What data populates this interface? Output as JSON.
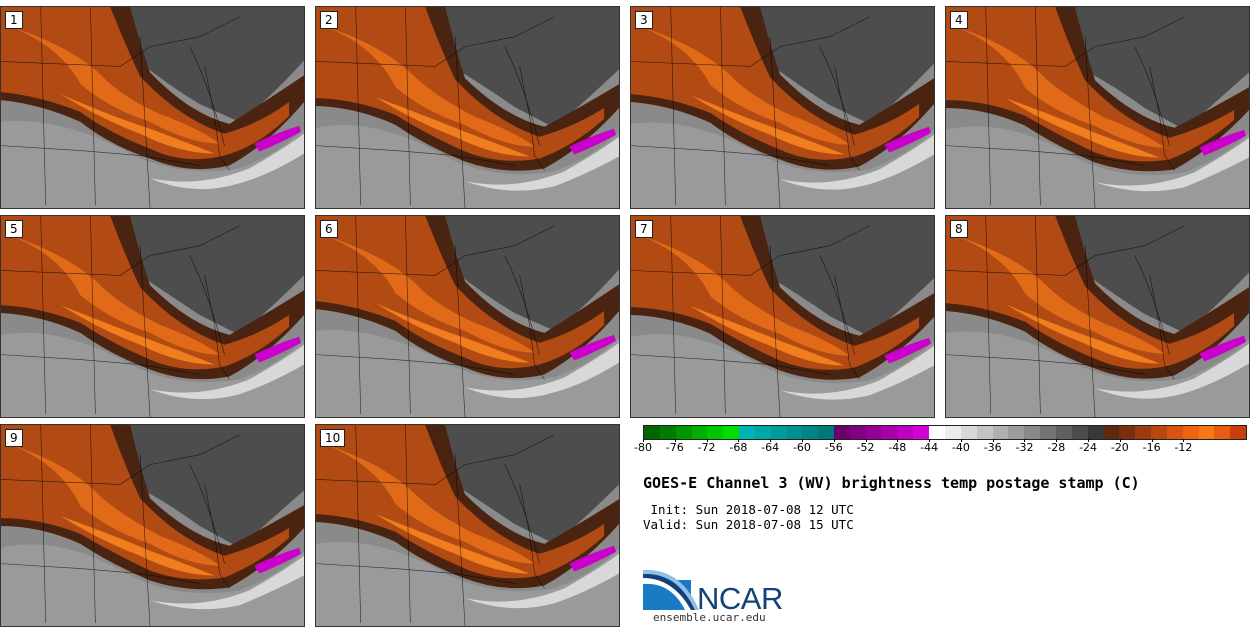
{
  "panels": [
    {
      "label": "1"
    },
    {
      "label": "2"
    },
    {
      "label": "3"
    },
    {
      "label": "4"
    },
    {
      "label": "5"
    },
    {
      "label": "6"
    },
    {
      "label": "7"
    },
    {
      "label": "8"
    },
    {
      "label": "9"
    },
    {
      "label": "10"
    }
  ],
  "colorbar": {
    "colors": [
      "#006400",
      "#007d00",
      "#009600",
      "#00b000",
      "#00c800",
      "#00e000",
      "#00b4b4",
      "#00a8a8",
      "#009c9c",
      "#009090",
      "#008484",
      "#007878",
      "#6a006a",
      "#800080",
      "#960096",
      "#aa00aa",
      "#c000c0",
      "#d400d4",
      "#ffffff",
      "#ececec",
      "#d8d8d8",
      "#c4c4c4",
      "#b0b0b0",
      "#9c9c9c",
      "#888888",
      "#747474",
      "#606060",
      "#4c4c4c",
      "#383838",
      "#5c2810",
      "#7a3010",
      "#9a3c10",
      "#b84810",
      "#d85410",
      "#f06410",
      "#f87818",
      "#e85c10",
      "#c84010"
    ],
    "ticks": [
      "-80",
      "-76",
      "-72",
      "-68",
      "-64",
      "-60",
      "-56",
      "-52",
      "-48",
      "-44",
      "-40",
      "-36",
      "-32",
      "-28",
      "-24",
      "-20",
      "-16",
      "-12"
    ]
  },
  "title": "GOES-E Channel 3 (WV) brightness temp postage stamp (C)",
  "init": " Init: Sun 2018-07-08 12 UTC",
  "valid": "Valid: Sun 2018-07-08 15 UTC",
  "logo": {
    "text": "NCAR",
    "url": "ensemble.ucar.edu"
  }
}
